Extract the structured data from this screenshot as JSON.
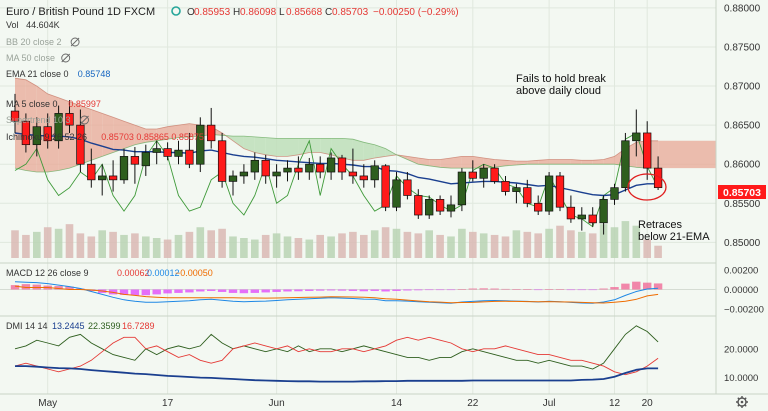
{
  "header": {
    "symbol_title": "Euro / British Pound  1D  FXCM",
    "ohlc": [
      {
        "k": "O",
        "v": "0.85953"
      },
      {
        "k": "H",
        "v": "0.86098"
      },
      {
        "k": "L",
        "v": "0.85668"
      },
      {
        "k": "C",
        "v": "0.85703"
      }
    ],
    "change": "−0.00250 (−0.29%)"
  },
  "legend": [
    {
      "label": "Vol",
      "value": "44.604K",
      "value_color": "#333333"
    },
    {
      "label": "BB 20 close 2",
      "value": "",
      "value_color": "#999999",
      "muted": true
    },
    {
      "label": "MA 50 close",
      "value": "",
      "value_color": "#999999",
      "muted": true
    },
    {
      "label": "EMA 21 close 0",
      "value": "0.85748",
      "value_color": "#1565c0"
    },
    {
      "label": "MA 5 close 0",
      "value": "0.85997",
      "value_color": "#e53935"
    },
    {
      "label": "Supertrend 10 3",
      "value": "",
      "value_color": "#999999",
      "muted": true
    },
    {
      "label": "Ichimoku 9 26 52 26",
      "value": "0.85703  0.85865  0.85875",
      "value_color": "#e53935"
    }
  ],
  "annotations": {
    "top": [
      "Fails to hold break",
      "above daily cloud"
    ],
    "bottom": [
      "Retraces",
      "below 21-EMA"
    ]
  },
  "price_axis": {
    "ticks": [
      "0.88000",
      "0.87500",
      "0.87000",
      "0.86500",
      "0.86000",
      "0.85500",
      "0.85000"
    ],
    "last_price": "0.85703"
  },
  "macd_panel": {
    "label": "MACD 12 26 close 9",
    "values": [
      "0.00062",
      "0.00012",
      "−0.00050"
    ],
    "ticks": [
      "0.00200",
      "0.00000",
      "−0.00200"
    ]
  },
  "dmi_panel": {
    "label": "DMI 14 14",
    "values": [
      "13.2445",
      "22.3599",
      "16.7289"
    ],
    "ticks": [
      "20.0000",
      "10.0000"
    ]
  },
  "time_axis": [
    "May",
    "17",
    "Jun",
    "14",
    "22",
    "Jul",
    "12",
    "20"
  ],
  "colors": {
    "bull": "#2e5e1e",
    "bear": "#ff1a1a",
    "cloud_bear": "#e8a896",
    "cloud_bull": "#b7dcb2",
    "ema": "#1a3f8f"
  },
  "chart_data": {
    "type": "candlestick",
    "instrument": "Euro / British Pound",
    "timeframe": "1D",
    "ylim": [
      0.848,
      0.8805
    ],
    "candles": [
      [
        0.8668,
        0.869,
        0.864,
        0.8655
      ],
      [
        0.8655,
        0.8665,
        0.8615,
        0.8625
      ],
      [
        0.8625,
        0.866,
        0.861,
        0.8648
      ],
      [
        0.8648,
        0.8665,
        0.862,
        0.863
      ],
      [
        0.863,
        0.8675,
        0.862,
        0.8665
      ],
      [
        0.8665,
        0.8682,
        0.864,
        0.865
      ],
      [
        0.865,
        0.867,
        0.859,
        0.86
      ],
      [
        0.86,
        0.862,
        0.857,
        0.858
      ],
      [
        0.858,
        0.86,
        0.856,
        0.8585
      ],
      [
        0.8585,
        0.8605,
        0.8565,
        0.858
      ],
      [
        0.858,
        0.862,
        0.8575,
        0.861
      ],
      [
        0.861,
        0.8622,
        0.8575,
        0.86
      ],
      [
        0.8598,
        0.8625,
        0.8585,
        0.8615
      ],
      [
        0.8615,
        0.863,
        0.86,
        0.862
      ],
      [
        0.862,
        0.8628,
        0.8605,
        0.861
      ],
      [
        0.861,
        0.863,
        0.86,
        0.8618
      ],
      [
        0.8618,
        0.864,
        0.8595,
        0.86
      ],
      [
        0.86,
        0.866,
        0.859,
        0.865
      ],
      [
        0.865,
        0.8672,
        0.862,
        0.863
      ],
      [
        0.863,
        0.864,
        0.857,
        0.8578
      ],
      [
        0.8578,
        0.8592,
        0.856,
        0.8585
      ],
      [
        0.8585,
        0.86,
        0.8575,
        0.859
      ],
      [
        0.859,
        0.8615,
        0.858,
        0.8605
      ],
      [
        0.8605,
        0.8612,
        0.8575,
        0.8585
      ],
      [
        0.8585,
        0.86,
        0.857,
        0.859
      ],
      [
        0.859,
        0.8605,
        0.8578,
        0.8595
      ],
      [
        0.8595,
        0.861,
        0.858,
        0.859
      ],
      [
        0.859,
        0.8608,
        0.858,
        0.86
      ],
      [
        0.86,
        0.861,
        0.8582,
        0.859
      ],
      [
        0.859,
        0.8615,
        0.858,
        0.8608
      ],
      [
        0.8608,
        0.8612,
        0.858,
        0.859
      ],
      [
        0.859,
        0.862,
        0.8575,
        0.8585
      ],
      [
        0.8585,
        0.86,
        0.857,
        0.858
      ],
      [
        0.858,
        0.8605,
        0.857,
        0.8598
      ],
      [
        0.8598,
        0.86,
        0.854,
        0.8545
      ],
      [
        0.8545,
        0.859,
        0.854,
        0.858
      ],
      [
        0.858,
        0.859,
        0.8555,
        0.856
      ],
      [
        0.856,
        0.8568,
        0.853,
        0.8535
      ],
      [
        0.8535,
        0.856,
        0.853,
        0.8555
      ],
      [
        0.8555,
        0.856,
        0.8535,
        0.854
      ],
      [
        0.854,
        0.856,
        0.8532,
        0.8548
      ],
      [
        0.8548,
        0.8595,
        0.854,
        0.859
      ],
      [
        0.859,
        0.8605,
        0.8578,
        0.8582
      ],
      [
        0.8582,
        0.86,
        0.857,
        0.8595
      ],
      [
        0.8595,
        0.86,
        0.8575,
        0.8578
      ],
      [
        0.8578,
        0.8585,
        0.856,
        0.8565
      ],
      [
        0.8565,
        0.8575,
        0.855,
        0.857
      ],
      [
        0.857,
        0.858,
        0.8545,
        0.855
      ],
      [
        0.855,
        0.856,
        0.8535,
        0.854
      ],
      [
        0.854,
        0.859,
        0.8535,
        0.8585
      ],
      [
        0.8585,
        0.859,
        0.854,
        0.8545
      ],
      [
        0.8545,
        0.856,
        0.8525,
        0.853
      ],
      [
        0.853,
        0.8545,
        0.8515,
        0.8535
      ],
      [
        0.8535,
        0.8545,
        0.852,
        0.8525
      ],
      [
        0.8525,
        0.856,
        0.851,
        0.8555
      ],
      [
        0.8555,
        0.8575,
        0.8548,
        0.857
      ],
      [
        0.857,
        0.864,
        0.8565,
        0.863
      ],
      [
        0.863,
        0.867,
        0.861,
        0.864
      ],
      [
        0.864,
        0.8655,
        0.858,
        0.8595
      ],
      [
        0.8595,
        0.861,
        0.8567,
        0.857
      ]
    ],
    "volume": [
      18,
      15,
      17,
      20,
      19,
      22,
      16,
      14,
      18,
      17,
      15,
      16,
      14,
      13,
      12,
      15,
      17,
      20,
      18,
      19,
      14,
      13,
      12,
      15,
      16,
      14,
      13,
      12,
      15,
      14,
      16,
      17,
      15,
      18,
      20,
      19,
      17,
      16,
      18,
      15,
      14,
      19,
      17,
      16,
      15,
      14,
      18,
      17,
      16,
      19,
      21,
      18,
      17,
      16,
      22,
      20,
      24,
      21,
      12,
      8
    ],
    "ema21": [
      0.864,
      0.8638,
      0.8637,
      0.8636,
      0.8636,
      0.8635,
      0.8632,
      0.8627,
      0.8623,
      0.8619,
      0.8618,
      0.8616,
      0.8616,
      0.8616,
      0.8615,
      0.8615,
      0.8614,
      0.8617,
      0.8618,
      0.8615,
      0.8612,
      0.861,
      0.8609,
      0.8607,
      0.8605,
      0.8604,
      0.8603,
      0.8602,
      0.8601,
      0.8601,
      0.86,
      0.8599,
      0.8597,
      0.8597,
      0.8592,
      0.8591,
      0.8588,
      0.8583,
      0.8581,
      0.8578,
      0.8575,
      0.8576,
      0.8577,
      0.8578,
      0.8578,
      0.8577,
      0.8576,
      0.8574,
      0.8572,
      0.8573,
      0.857,
      0.8567,
      0.8564,
      0.8561,
      0.856,
      0.8561,
      0.8567,
      0.8573,
      0.8575,
      0.8575
    ],
    "cloud_a": [
      0.871,
      0.8708,
      0.87,
      0.869,
      0.8685,
      0.868,
      0.8675,
      0.867,
      0.8665,
      0.866,
      0.8655,
      0.865,
      0.8645,
      0.8645,
      0.8648,
      0.865,
      0.8652,
      0.865,
      0.8648,
      0.864,
      0.863,
      0.862,
      0.8615,
      0.8612,
      0.861,
      0.861,
      0.8612,
      0.8615,
      0.8615,
      0.8612,
      0.8608,
      0.8605,
      0.8605,
      0.8608,
      0.861,
      0.8612,
      0.861,
      0.8608,
      0.8606,
      0.8606,
      0.8608,
      0.861,
      0.861,
      0.8608,
      0.8606,
      0.8605,
      0.8604,
      0.8604,
      0.8605,
      0.8606,
      0.8606,
      0.8606,
      0.8605,
      0.8605,
      0.8606,
      0.861,
      0.862,
      0.8628,
      0.863,
      0.863
    ],
    "cloud_b": [
      0.8595,
      0.8592,
      0.859,
      0.859,
      0.8592,
      0.8595,
      0.86,
      0.8605,
      0.861,
      0.8615,
      0.862,
      0.8625,
      0.8628,
      0.863,
      0.8632,
      0.8634,
      0.8635,
      0.8636,
      0.8638,
      0.8637,
      0.8636,
      0.8636,
      0.8635,
      0.8634,
      0.8633,
      0.8633,
      0.8633,
      0.8633,
      0.8633,
      0.8633,
      0.8633,
      0.8632,
      0.8628,
      0.8625,
      0.862,
      0.8612,
      0.8606,
      0.86,
      0.8598,
      0.8596,
      0.8595,
      0.8595,
      0.8595,
      0.8595,
      0.8596,
      0.8598,
      0.8599,
      0.86,
      0.86,
      0.86,
      0.86,
      0.86,
      0.86,
      0.86,
      0.86,
      0.86,
      0.8598,
      0.8596,
      0.8595,
      0.8595
    ],
    "lagging": [
      0.8592,
      0.86,
      0.862,
      0.858,
      0.856,
      0.857,
      0.859,
      0.858,
      0.86,
      0.856,
      0.854,
      0.856,
      0.861,
      0.863,
      0.861,
      0.856,
      0.854,
      0.8545,
      0.858,
      0.859,
      0.855,
      0.8535,
      0.856,
      0.86,
      0.855,
      0.856,
      0.86,
      0.863,
      0.856,
      0.862,
      0.86,
      0.8585,
      0.856,
      0.854,
      0.8548,
      0.8585,
      0.857,
      0.856,
      0.8558,
      0.8548,
      0.854,
      0.8548,
      0.8592,
      0.86,
      0.8595,
      0.8575,
      0.857,
      0.855,
      0.8545,
      0.8585,
      0.856,
      0.8535,
      0.853,
      0.852,
      0.856,
      0.857,
      0.8632,
      0.864,
      0.8597,
      0.857
    ],
    "macd_hist": [
      0.00045,
      0.00055,
      0.0005,
      0.0004,
      0.00035,
      0.0003,
      0.0001,
      -0.00015,
      -0.00035,
      -0.0005,
      -0.00055,
      -0.0006,
      -0.00058,
      -0.0005,
      -0.0004,
      -0.00035,
      -0.0003,
      -0.0002,
      -0.00015,
      -0.00025,
      -0.00035,
      -0.00038,
      -0.00035,
      -0.0003,
      -0.00025,
      -0.0002,
      -0.00018,
      -0.00015,
      -0.00012,
      -0.0001,
      -0.00012,
      -0.00015,
      -0.00018,
      -0.00015,
      -0.0002,
      -0.00015,
      -0.0001,
      -8e-05,
      -5e-05,
      -6e-05,
      -5e-05,
      5e-05,
      0.0001,
      0.00012,
      0.0001,
      6e-05,
      4e-05,
      2e-05,
      -2e-05,
      4e-05,
      2e-05,
      -4e-05,
      -6e-05,
      -5e-05,
      0.0001,
      0.00025,
      0.0006,
      0.0008,
      0.0007,
      0.00062
    ],
    "macd_line": [
      0.0008,
      0.00075,
      0.0007,
      0.0006,
      0.00045,
      0.0003,
      0.0001,
      -0.0002,
      -0.0005,
      -0.0008,
      -0.00105,
      -0.0012,
      -0.0013,
      -0.0013,
      -0.00125,
      -0.0012,
      -0.00115,
      -0.00105,
      -0.001,
      -0.0011,
      -0.0012,
      -0.00125,
      -0.00122,
      -0.00118,
      -0.00112,
      -0.00105,
      -0.001,
      -0.00095,
      -0.0009,
      -0.00085,
      -0.00088,
      -0.00092,
      -0.00098,
      -0.001,
      -0.00115,
      -0.00115,
      -0.00118,
      -0.00125,
      -0.0013,
      -0.00135,
      -0.0014,
      -0.00128,
      -0.00122,
      -0.00115,
      -0.00112,
      -0.00115,
      -0.00118,
      -0.00122,
      -0.00128,
      -0.0012,
      -0.00125,
      -0.00132,
      -0.00138,
      -0.0014,
      -0.00128,
      -0.00105,
      -0.0006,
      -0.0002,
      5e-05,
      0.00012
    ],
    "signal_line": [
      0.00035,
      0.0002,
      0.0002,
      0.0002,
      0.0001,
      0.0,
      0.0,
      -5e-05,
      -0.00015,
      -0.0003,
      -0.0005,
      -0.0006,
      -0.00072,
      -0.0008,
      -0.00085,
      -0.00085,
      -0.00085,
      -0.00085,
      -0.00085,
      -0.00085,
      -0.00085,
      -0.00087,
      -0.00087,
      -0.00088,
      -0.00087,
      -0.00085,
      -0.00082,
      -0.0008,
      -0.00078,
      -0.00075,
      -0.00076,
      -0.00077,
      -0.0008,
      -0.00085,
      -0.00095,
      -0.001,
      -0.00108,
      -0.00117,
      -0.00125,
      -0.00129,
      -0.00135,
      -0.00133,
      -0.00132,
      -0.00127,
      -0.00122,
      -0.00121,
      -0.00122,
      -0.00124,
      -0.00126,
      -0.00124,
      -0.00127,
      -0.00128,
      -0.00132,
      -0.00135,
      -0.00138,
      -0.0013,
      -0.0012,
      -0.001,
      -0.00065,
      -0.0005
    ],
    "dmi_adx": [
      14.0,
      14.0,
      13.8,
      13.5,
      13.3,
      13.2,
      13.0,
      12.6,
      12.3,
      12.0,
      11.7,
      11.4,
      11.2,
      10.9,
      10.6,
      10.4,
      10.2,
      10.0,
      9.9,
      9.7,
      9.5,
      9.3,
      9.1,
      9.0,
      8.9,
      8.8,
      8.7,
      8.7,
      8.6,
      8.6,
      8.6,
      8.6,
      8.7,
      8.7,
      8.8,
      8.8,
      8.9,
      8.9,
      8.9,
      8.9,
      8.9,
      8.9,
      9.0,
      9.0,
      9.0,
      9.0,
      9.0,
      9.0,
      9.0,
      9.0,
      9.0,
      9.0,
      9.2,
      9.3,
      9.5,
      10.3,
      11.6,
      12.7,
      13.2,
      13.2
    ],
    "dmi_plus": [
      20,
      21,
      23,
      22,
      21,
      24,
      25,
      22,
      20,
      18,
      17,
      16,
      20,
      18,
      20,
      21,
      20,
      21,
      25,
      22,
      20,
      21,
      20,
      19,
      20,
      19,
      21,
      19,
      20,
      20,
      19,
      20,
      21,
      20,
      19,
      18,
      17,
      17,
      16,
      17,
      17,
      19,
      20,
      19,
      18,
      17,
      16,
      16,
      15,
      16,
      15,
      14,
      14,
      13,
      15,
      20,
      25,
      28,
      26,
      22.4
    ],
    "dmi_minus": [
      14,
      15,
      14,
      13,
      12,
      13,
      14,
      16,
      19,
      22,
      24,
      24,
      20,
      21,
      19,
      17,
      18,
      16,
      15,
      16,
      20,
      21,
      22,
      21,
      20,
      21,
      19,
      20,
      19,
      19,
      20,
      20,
      19,
      20,
      21,
      23,
      24,
      23,
      24,
      23,
      22,
      20,
      19,
      20,
      20,
      21,
      20,
      19,
      18,
      18,
      17,
      16,
      16,
      15,
      14,
      12,
      11,
      12,
      14,
      16.7
    ]
  }
}
